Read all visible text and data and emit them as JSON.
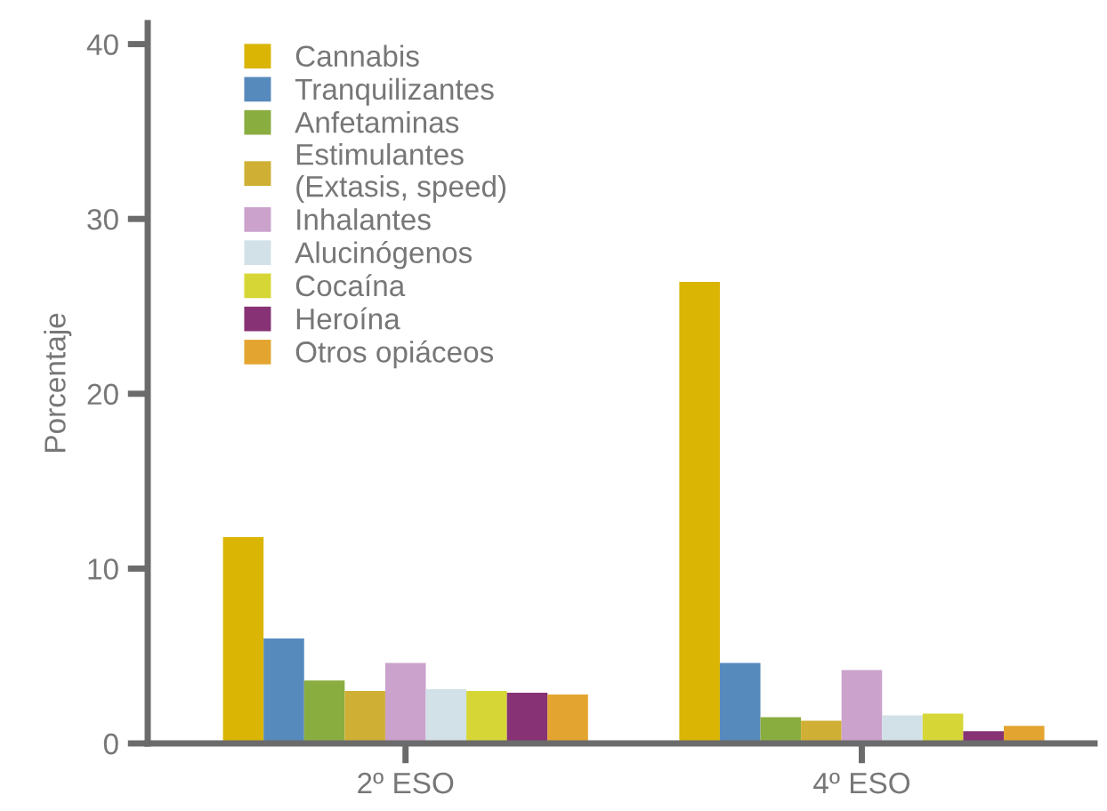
{
  "chart_data": {
    "type": "bar",
    "ylabel": "Porcentaje",
    "categories": [
      "2º ESO",
      "4º ESO"
    ],
    "series": [
      {
        "name": "Cannabis",
        "color": "#dab503",
        "values": [
          11.8,
          26.4
        ]
      },
      {
        "name": "Tranquilizantes",
        "color": "#568abd",
        "values": [
          6.0,
          4.6
        ]
      },
      {
        "name": "Anfetaminas",
        "color": "#8aad40",
        "values": [
          3.6,
          1.5
        ]
      },
      {
        "name": "Estimulantes\n(Extasis, speed)",
        "color": "#cfb034",
        "values": [
          3.0,
          1.3
        ]
      },
      {
        "name": "Inhalantes",
        "color": "#caa2cb",
        "values": [
          4.6,
          4.2
        ]
      },
      {
        "name": "Alucinógenos",
        "color": "#d2e0e7",
        "values": [
          3.1,
          1.6
        ]
      },
      {
        "name": "Cocaína",
        "color": "#d6d736",
        "values": [
          3.0,
          1.7
        ]
      },
      {
        "name": "Heroína",
        "color": "#863274",
        "values": [
          2.9,
          0.7
        ]
      },
      {
        "name": "Otros opiáceos",
        "color": "#e3a530",
        "values": [
          2.8,
          1.0
        ]
      }
    ],
    "ylim": [
      0,
      41.2
    ],
    "yticks": [
      0,
      10,
      20,
      30,
      40
    ],
    "grid": false,
    "legend": "top left"
  }
}
